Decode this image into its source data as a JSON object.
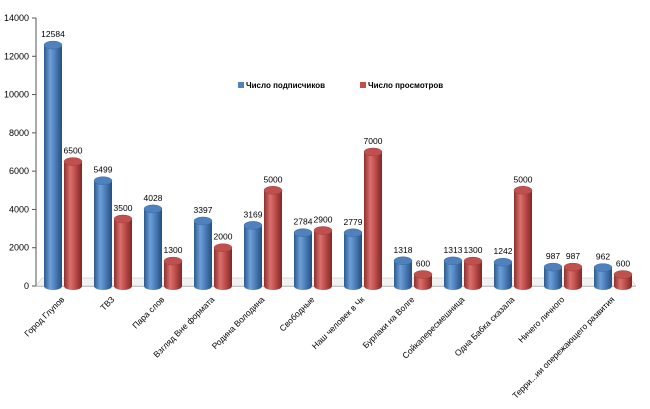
{
  "chart_data": {
    "type": "bar",
    "categories": [
      "Город Глупов",
      "ТВЗ",
      "Пара слов",
      "Взгляд Вне формата",
      "Родина Володина",
      "Свободные",
      "Наш человек в Чк",
      "Бурлаки на Волге",
      "Сойкапересмешница",
      "Одна Бабка сказала",
      "Ничего личного",
      "Терри...ии опережающего развития"
    ],
    "series": [
      {
        "name": "Число подписчиков",
        "color": "#4F81BD",
        "values": [
          12584,
          5499,
          4028,
          3397,
          3169,
          2784,
          2779,
          1318,
          1313,
          1242,
          987,
          962
        ],
        "labels": [
          "12584",
          "5499",
          "4028",
          "3397",
          "3169",
          "2784",
          "2779",
          "1318",
          "1313",
          "1242",
          "987",
          "962"
        ]
      },
      {
        "name": "Число просмотров",
        "color": "#C0504D",
        "values": [
          6500,
          3500,
          1300,
          2000,
          5000,
          2900,
          7000,
          600,
          1300,
          5000,
          987,
          600
        ],
        "labels": [
          "6500",
          "3500",
          "1300",
          "2000",
          "5000",
          "2900",
          "7000",
          "600",
          "1300",
          "5000",
          "987",
          "600"
        ]
      }
    ],
    "ylim": [
      0,
      14000
    ],
    "yticks": [
      "0",
      "2000",
      "4000",
      "6000",
      "8000",
      "10000",
      "12000",
      "14000"
    ],
    "legend": "top-right",
    "grid": false,
    "style": "3d-cylinder"
  }
}
